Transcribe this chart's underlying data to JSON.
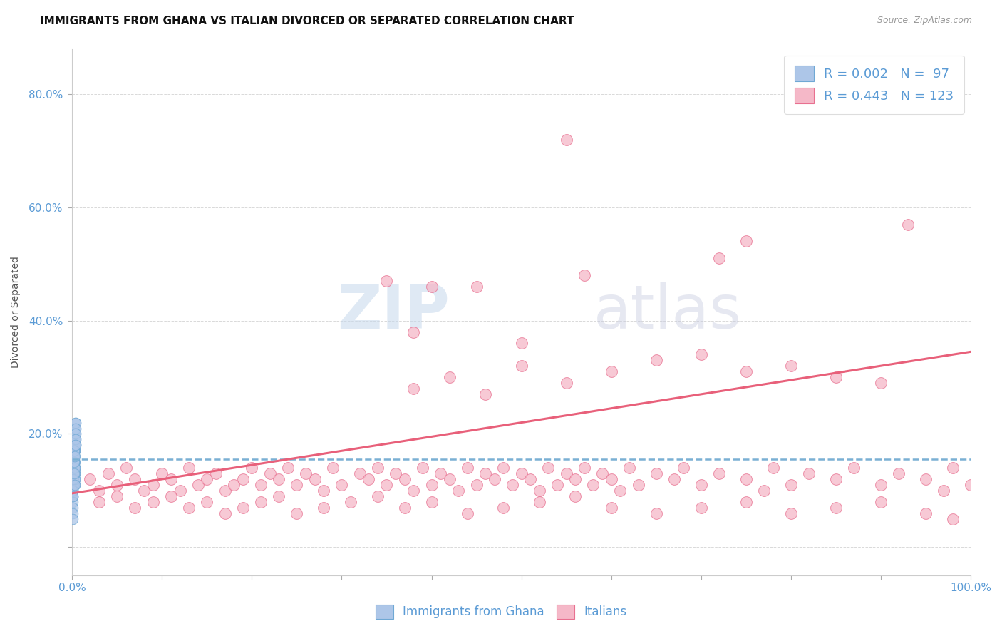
{
  "title": "IMMIGRANTS FROM GHANA VS ITALIAN DIVORCED OR SEPARATED CORRELATION CHART",
  "source_text": "Source: ZipAtlas.com",
  "ylabel": "Divorced or Separated",
  "xlim": [
    0.0,
    1.0
  ],
  "ylim": [
    -0.05,
    0.88
  ],
  "xticks": [
    0.0,
    0.1,
    0.2,
    0.3,
    0.4,
    0.5,
    0.6,
    0.7,
    0.8,
    0.9,
    1.0
  ],
  "yticks": [
    0.0,
    0.2,
    0.4,
    0.6,
    0.8
  ],
  "ytick_labels": [
    "",
    "20.0%",
    "40.0%",
    "60.0%",
    "80.0%"
  ],
  "xtick_labels": [
    "0.0%",
    "",
    "",
    "",
    "",
    "",
    "",
    "",
    "",
    "",
    "100.0%"
  ],
  "legend_R1": "0.002",
  "legend_N1": "97",
  "legend_R2": "0.443",
  "legend_N2": "123",
  "color_blue": "#adc6e8",
  "color_blue_edge": "#6fa8d4",
  "color_blue_line": "#7ab0d4",
  "color_pink": "#f5b8c8",
  "color_pink_edge": "#e87090",
  "color_pink_line": "#e8607a",
  "color_text": "#5b9bd5",
  "background_color": "#ffffff",
  "grid_color": "#d0d0d0",
  "watermark_color": "#d5e5f0",
  "ghana_x": [
    0.001,
    0.002,
    0.001,
    0.003,
    0.002,
    0.001,
    0.004,
    0.002,
    0.003,
    0.001,
    0.002,
    0.001,
    0.003,
    0.002,
    0.004,
    0.001,
    0.002,
    0.003,
    0.001,
    0.002,
    0.003,
    0.001,
    0.002,
    0.003,
    0.004,
    0.001,
    0.002,
    0.001,
    0.003,
    0.002,
    0.001,
    0.004,
    0.002,
    0.003,
    0.001,
    0.002,
    0.003,
    0.001,
    0.002,
    0.004,
    0.001,
    0.002,
    0.003,
    0.001,
    0.002,
    0.001,
    0.003,
    0.002,
    0.001,
    0.004,
    0.002,
    0.001,
    0.003,
    0.002,
    0.004,
    0.001,
    0.002,
    0.003,
    0.001,
    0.002,
    0.003,
    0.001,
    0.002,
    0.001,
    0.003,
    0.002,
    0.004,
    0.001,
    0.002,
    0.003,
    0.001,
    0.002,
    0.003,
    0.004,
    0.001,
    0.002,
    0.001,
    0.003,
    0.002,
    0.001,
    0.002,
    0.003,
    0.001,
    0.002,
    0.004,
    0.001,
    0.002,
    0.003,
    0.001,
    0.002,
    0.003,
    0.001,
    0.002,
    0.004,
    0.001,
    0.002,
    0.003
  ],
  "ghana_y": [
    0.15,
    0.18,
    0.12,
    0.2,
    0.16,
    0.14,
    0.22,
    0.17,
    0.19,
    0.13,
    0.16,
    0.11,
    0.18,
    0.15,
    0.21,
    0.13,
    0.17,
    0.14,
    0.1,
    0.16,
    0.19,
    0.14,
    0.15,
    0.12,
    0.18,
    0.16,
    0.13,
    0.11,
    0.17,
    0.14,
    0.12,
    0.2,
    0.15,
    0.13,
    0.16,
    0.18,
    0.14,
    0.09,
    0.17,
    0.22,
    0.13,
    0.15,
    0.11,
    0.16,
    0.14,
    0.12,
    0.18,
    0.15,
    0.1,
    0.19,
    0.16,
    0.13,
    0.17,
    0.14,
    0.21,
    0.11,
    0.15,
    0.18,
    0.12,
    0.16,
    0.14,
    0.09,
    0.17,
    0.13,
    0.15,
    0.11,
    0.2,
    0.14,
    0.16,
    0.12,
    0.08,
    0.15,
    0.13,
    0.18,
    0.11,
    0.16,
    0.14,
    0.12,
    0.17,
    0.1,
    0.15,
    0.13,
    0.07,
    0.16,
    0.19,
    0.12,
    0.14,
    0.11,
    0.06,
    0.17,
    0.14,
    0.09,
    0.15,
    0.18,
    0.05,
    0.13,
    0.16
  ],
  "italian_x": [
    0.02,
    0.03,
    0.04,
    0.05,
    0.06,
    0.07,
    0.08,
    0.09,
    0.1,
    0.11,
    0.12,
    0.13,
    0.14,
    0.15,
    0.16,
    0.17,
    0.18,
    0.19,
    0.2,
    0.21,
    0.22,
    0.23,
    0.24,
    0.25,
    0.26,
    0.27,
    0.28,
    0.29,
    0.3,
    0.32,
    0.33,
    0.34,
    0.35,
    0.36,
    0.37,
    0.38,
    0.39,
    0.4,
    0.41,
    0.42,
    0.43,
    0.44,
    0.45,
    0.46,
    0.47,
    0.48,
    0.49,
    0.5,
    0.51,
    0.52,
    0.53,
    0.54,
    0.55,
    0.56,
    0.57,
    0.58,
    0.59,
    0.6,
    0.61,
    0.62,
    0.63,
    0.65,
    0.67,
    0.68,
    0.7,
    0.72,
    0.75,
    0.77,
    0.78,
    0.8,
    0.82,
    0.85,
    0.87,
    0.9,
    0.92,
    0.95,
    0.97,
    0.98,
    1.0,
    0.03,
    0.05,
    0.07,
    0.09,
    0.11,
    0.13,
    0.15,
    0.17,
    0.19,
    0.21,
    0.23,
    0.25,
    0.28,
    0.31,
    0.34,
    0.37,
    0.4,
    0.44,
    0.48,
    0.52,
    0.56,
    0.6,
    0.65,
    0.7,
    0.75,
    0.8,
    0.85,
    0.9,
    0.95,
    0.98,
    0.38,
    0.42,
    0.46,
    0.5,
    0.55,
    0.6,
    0.65,
    0.7,
    0.75,
    0.8,
    0.85,
    0.9,
    0.35,
    0.4
  ],
  "italian_y": [
    0.12,
    0.1,
    0.13,
    0.11,
    0.14,
    0.12,
    0.1,
    0.11,
    0.13,
    0.12,
    0.1,
    0.14,
    0.11,
    0.12,
    0.13,
    0.1,
    0.11,
    0.12,
    0.14,
    0.11,
    0.13,
    0.12,
    0.14,
    0.11,
    0.13,
    0.12,
    0.1,
    0.14,
    0.11,
    0.13,
    0.12,
    0.14,
    0.11,
    0.13,
    0.12,
    0.1,
    0.14,
    0.11,
    0.13,
    0.12,
    0.1,
    0.14,
    0.11,
    0.13,
    0.12,
    0.14,
    0.11,
    0.13,
    0.12,
    0.1,
    0.14,
    0.11,
    0.13,
    0.12,
    0.14,
    0.11,
    0.13,
    0.12,
    0.1,
    0.14,
    0.11,
    0.13,
    0.12,
    0.14,
    0.11,
    0.13,
    0.12,
    0.1,
    0.14,
    0.11,
    0.13,
    0.12,
    0.14,
    0.11,
    0.13,
    0.12,
    0.1,
    0.14,
    0.11,
    0.08,
    0.09,
    0.07,
    0.08,
    0.09,
    0.07,
    0.08,
    0.06,
    0.07,
    0.08,
    0.09,
    0.06,
    0.07,
    0.08,
    0.09,
    0.07,
    0.08,
    0.06,
    0.07,
    0.08,
    0.09,
    0.07,
    0.06,
    0.07,
    0.08,
    0.06,
    0.07,
    0.08,
    0.06,
    0.05,
    0.28,
    0.3,
    0.27,
    0.32,
    0.29,
    0.31,
    0.33,
    0.34,
    0.31,
    0.32,
    0.3,
    0.29,
    0.47,
    0.46
  ],
  "italian_outliers_x": [
    0.38,
    0.45,
    0.5,
    0.57,
    0.55,
    0.72,
    0.75,
    0.93
  ],
  "italian_outliers_y": [
    0.38,
    0.46,
    0.36,
    0.48,
    0.72,
    0.51,
    0.54,
    0.57
  ],
  "blue_line_x": [
    0.0,
    1.0
  ],
  "blue_line_y": [
    0.155,
    0.155
  ],
  "pink_line_x": [
    0.0,
    1.0
  ],
  "pink_line_y": [
    0.095,
    0.345
  ]
}
